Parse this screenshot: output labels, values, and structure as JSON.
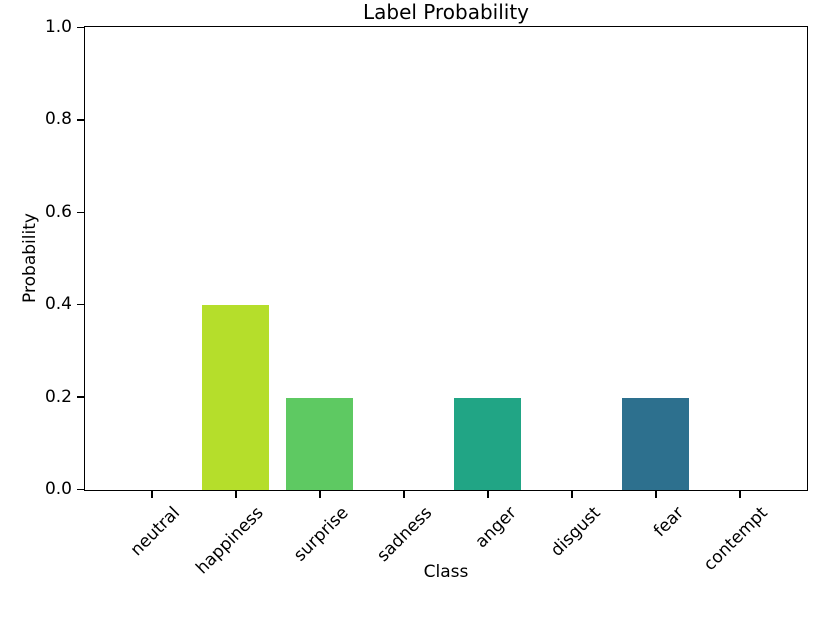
{
  "chart_data": {
    "type": "bar",
    "title": "Label Probability",
    "xlabel": "Class",
    "ylabel": "Probability",
    "categories": [
      "neutral",
      "happiness",
      "surprise",
      "sadness",
      "anger",
      "disgust",
      "fear",
      "contempt"
    ],
    "values": [
      0,
      0.4,
      0.2,
      0,
      0.2,
      0,
      0.2,
      0
    ],
    "bar_colors": [
      "",
      "#b5de2b",
      "#5ec962",
      "",
      "#21a585",
      "",
      "#2d708e",
      ""
    ],
    "ylim": [
      0,
      1.0
    ],
    "ytick_values": [
      0,
      0.2,
      0.4,
      0.6,
      0.8,
      1.0
    ],
    "ytick_labels": [
      "0.0",
      "0.2",
      "0.4",
      "0.6",
      "0.8",
      "1.0"
    ],
    "x_tick_rotation_deg": 45,
    "grid": false,
    "legend": "none",
    "background_color": "#ffffff",
    "text_color": "#000000",
    "spine_color": "#000000"
  }
}
